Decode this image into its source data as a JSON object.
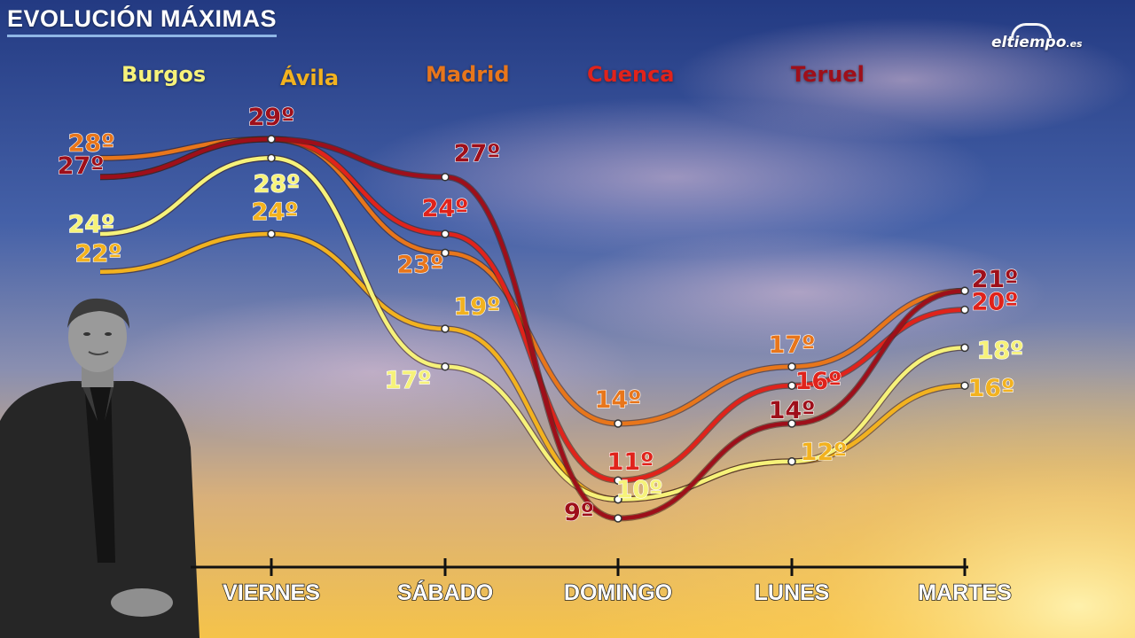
{
  "header": {
    "title": "EVOLUCIÓN MÁXIMAS"
  },
  "brand": {
    "logo_main": "eltiempo",
    "logo_suffix": ".es"
  },
  "colors": {
    "burgos": "#f6f27a",
    "avila": "#f2b21f",
    "madrid": "#e8761b",
    "cuenca": "#e0231b",
    "teruel": "#9e0f1a"
  },
  "chart_data": {
    "type": "line",
    "title": "EVOLUCIÓN MÁXIMAS",
    "xlabel": "",
    "ylabel": "",
    "x": [
      "",
      "VIERNES",
      "SÁBADO",
      "DOMINGO",
      "LUNES",
      "MARTES"
    ],
    "y_unit": "º",
    "grid": false,
    "legend_position": "top",
    "series": [
      {
        "name": "Burgos",
        "color": "#f6f27a",
        "values": [
          24,
          28,
          17,
          10,
          12,
          18
        ],
        "labels": [
          "24º",
          "28º",
          "17º",
          "10º",
          "",
          "18º"
        ]
      },
      {
        "name": "Ávila",
        "color": "#f2b21f",
        "values": [
          22,
          24,
          19,
          10,
          12,
          16
        ],
        "labels": [
          "22º",
          "24º",
          "19º",
          "",
          "12º",
          "16º"
        ]
      },
      {
        "name": "Madrid",
        "color": "#e8761b",
        "values": [
          28,
          29,
          23,
          14,
          17,
          21
        ],
        "labels": [
          "28º",
          "",
          "23º",
          "14º",
          "17º",
          ""
        ]
      },
      {
        "name": "Cuenca",
        "color": "#e0231b",
        "values": [
          27,
          29,
          24,
          11,
          16,
          20
        ],
        "labels": [
          "",
          "",
          "24º",
          "11º",
          "16º",
          "20º"
        ]
      },
      {
        "name": "Teruel",
        "color": "#9e0f1a",
        "values": [
          27,
          29,
          27,
          9,
          14,
          21
        ],
        "labels": [
          "27º",
          "29º",
          "27º",
          "9º",
          "14º",
          "21º"
        ]
      }
    ]
  }
}
